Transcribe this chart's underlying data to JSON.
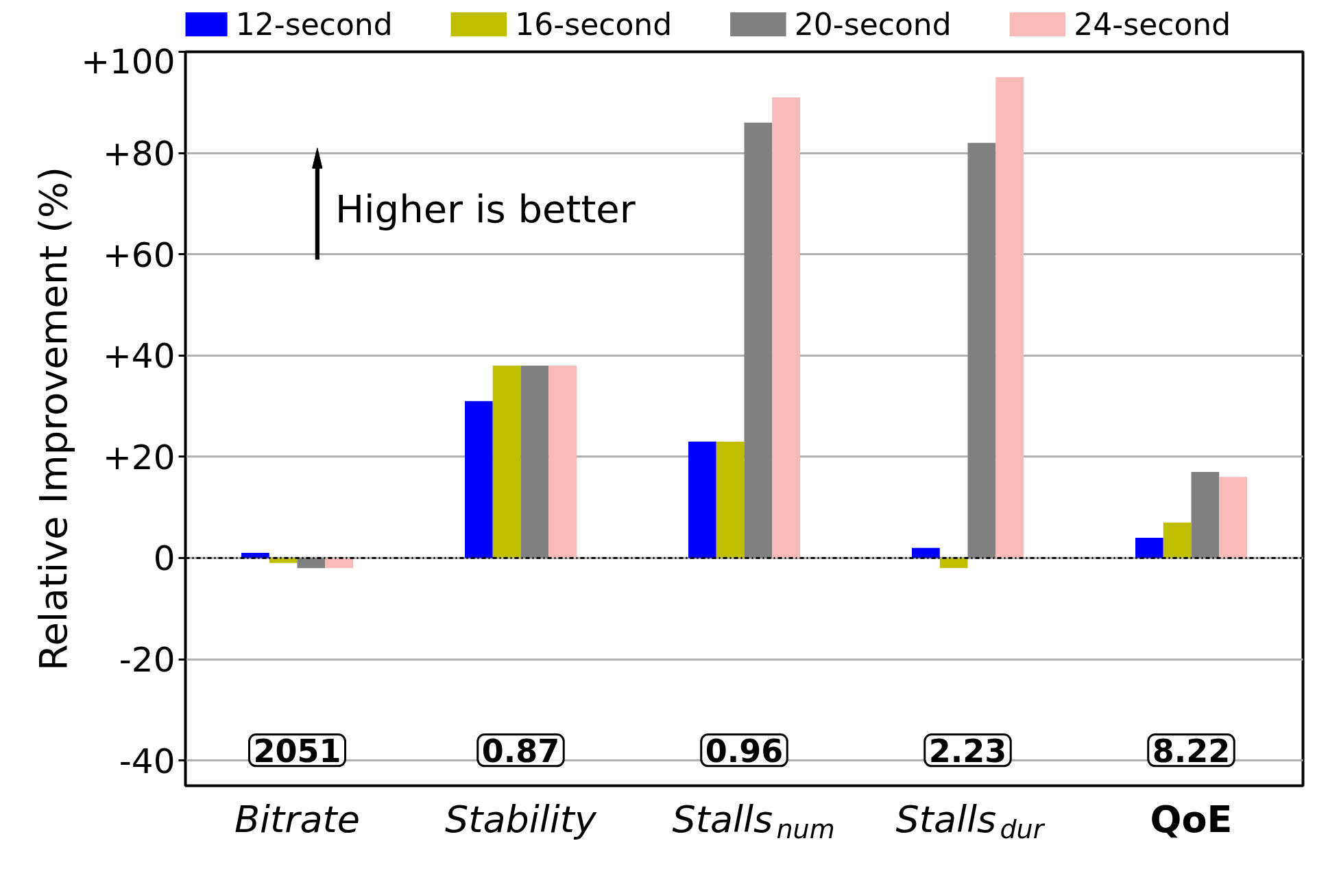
{
  "chart_data": {
    "type": "bar",
    "ylabel": "Relative Improvement (%)",
    "categories": [
      "Bitrate",
      "Stability",
      "Stalls$_{num}$",
      "Stalls$_{dur}$",
      "QoE"
    ],
    "series": [
      {
        "name": "12-second",
        "color": "#0000ff",
        "values": [
          1,
          31,
          23,
          2,
          4
        ]
      },
      {
        "name": "16-second",
        "color": "#bfbf00",
        "values": [
          -1,
          38,
          23,
          -2,
          7
        ]
      },
      {
        "name": "20-second",
        "color": "#808080",
        "values": [
          -2,
          38,
          86,
          82,
          17
        ]
      },
      {
        "name": "24-second",
        "color": "#f8b9b9",
        "values": [
          -2,
          38,
          91,
          95,
          16
        ]
      }
    ],
    "ylim": [
      -45,
      100
    ],
    "yticks": [
      {
        "value": -40,
        "label": "-40"
      },
      {
        "value": -20,
        "label": "-20"
      },
      0,
      {
        "value": 20,
        "label": "+20"
      },
      {
        "value": 40,
        "label": "+40"
      },
      {
        "value": 60,
        "label": "+60"
      },
      {
        "value": 80,
        "label": "+80"
      },
      {
        "value": 100,
        "label": "+100"
      }
    ],
    "grid": "y",
    "legend": "top",
    "ref_lines": [
      {
        "axis": "y",
        "value": 0,
        "color": "#000000",
        "line_style": "dashdot"
      }
    ],
    "annotations": [
      "Higher is better",
      "2051",
      "0.87",
      "0.96",
      "2.23",
      "8.22"
    ]
  }
}
